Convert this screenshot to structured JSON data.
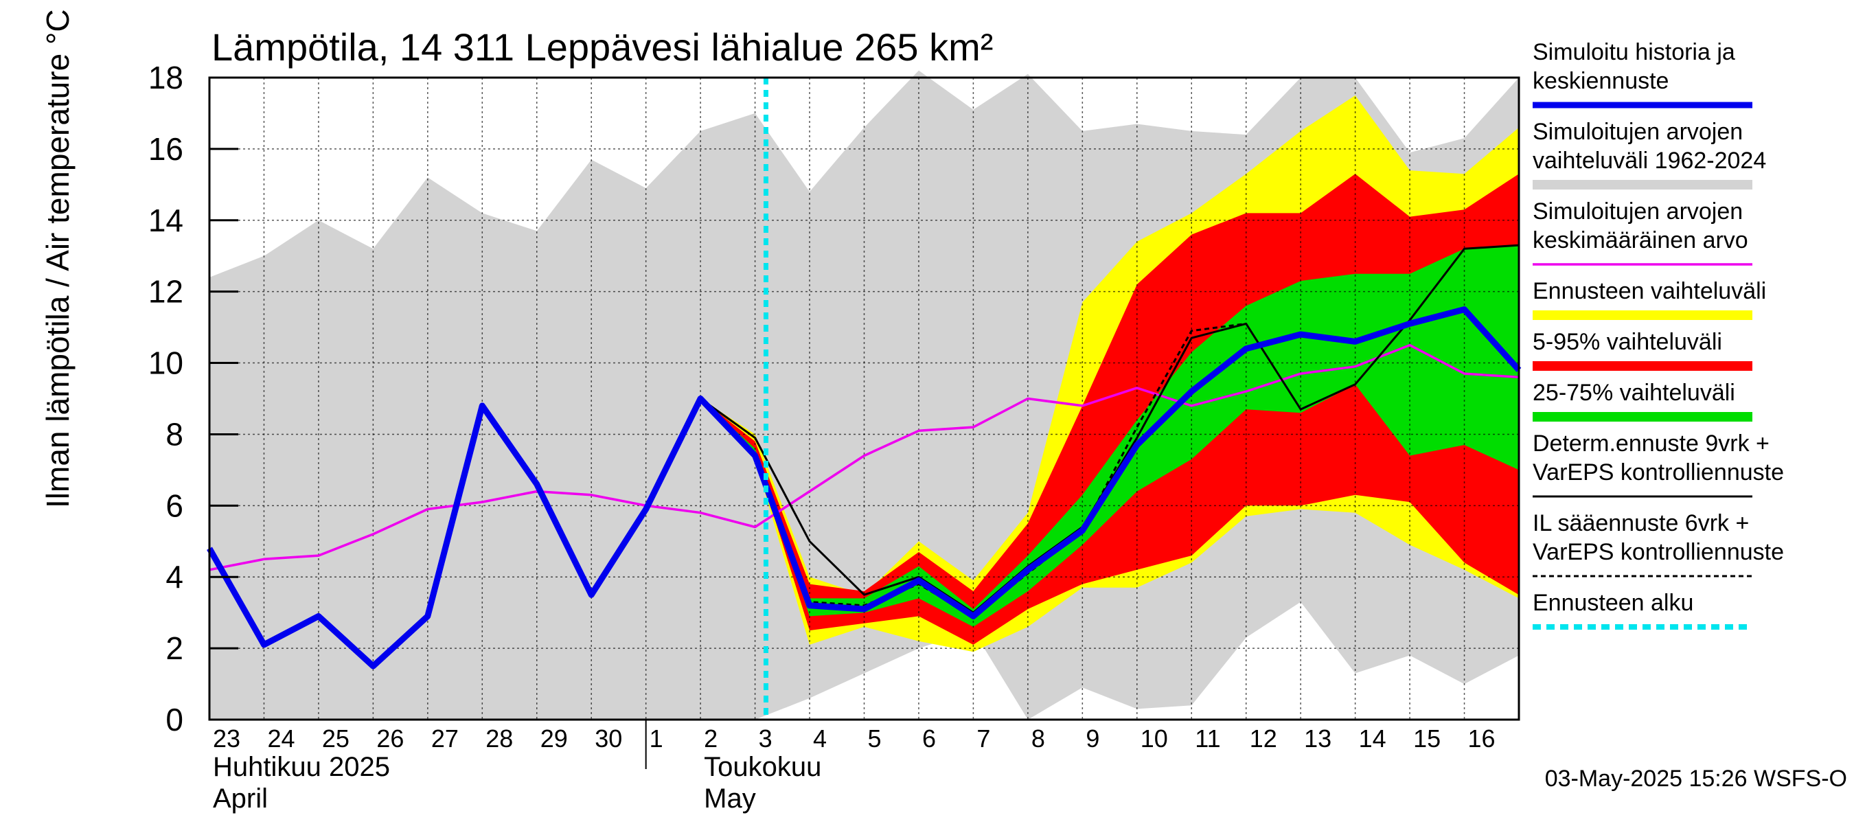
{
  "chart_data": {
    "type": "area",
    "title": "Lämpötila, 14 311 Leppävesi lähialue 265 km²",
    "ylabel": "Ilman lämpötila / Air temperature   °C",
    "ylim": [
      0,
      18
    ],
    "yticks": [
      0,
      2,
      4,
      6,
      8,
      10,
      12,
      14,
      16,
      18
    ],
    "grid": true,
    "legend_position": "right",
    "x_day_ticks": [
      "23",
      "24",
      "25",
      "26",
      "27",
      "28",
      "29",
      "30",
      "1",
      "2",
      "3",
      "4",
      "5",
      "6",
      "7",
      "8",
      "9",
      "10",
      "11",
      "12",
      "13",
      "14",
      "15",
      "16"
    ],
    "months": [
      {
        "fi": "Huhtikuu  2025",
        "en": "April"
      },
      {
        "fi": "Toukokuu",
        "en": "May"
      }
    ],
    "forecast_start": "2025-05-03",
    "footer": "03-May-2025 15:26 WSFS-O",
    "colors": {
      "history_range": "#d3d3d3",
      "forecast_range": "#ffff00",
      "p5_95": "#ff0000",
      "p25_75": "#00dd00",
      "simulated": "#0000ee",
      "mean": "#ee00ee",
      "determ": "#000000",
      "forecast_start": "#00e5ee"
    },
    "legend": [
      {
        "key": "simulated",
        "lines": [
          "Simuloitu historia ja",
          "keskiennuste"
        ],
        "style": "thick"
      },
      {
        "key": "history_range",
        "lines": [
          "Simuloitujen arvojen",
          "vaihteluväli 1962-2024"
        ],
        "style": "band"
      },
      {
        "key": "mean",
        "lines": [
          "Simuloitujen arvojen",
          "keskimääräinen arvo"
        ],
        "style": "line"
      },
      {
        "key": "forecast_range",
        "lines": [
          "Ennusteen vaihteluväli"
        ],
        "style": "band"
      },
      {
        "key": "p5_95",
        "lines": [
          "5-95% vaihteluväli"
        ],
        "style": "band"
      },
      {
        "key": "p25_75",
        "lines": [
          "25-75% vaihteluväli"
        ],
        "style": "band"
      },
      {
        "key": "determ",
        "lines": [
          "Determ.ennuste 9vrk +",
          "VarEPS kontrolliennuste"
        ],
        "style": "thin"
      },
      {
        "key": "il",
        "lines": [
          "IL sääennuste 6vrk  +",
          "  VarEPS kontrolliennuste"
        ],
        "style": "dashed"
      },
      {
        "key": "forecast_start",
        "lines": [
          "Ennusteen alku"
        ],
        "style": "dotted"
      }
    ],
    "series": {
      "history_max": {
        "x": [
          -0.5,
          0.5,
          1.5,
          2.5,
          3.5,
          4.5,
          5.5,
          6.5,
          7.5,
          8.5,
          9.5,
          10.5,
          11.5,
          12.5,
          13.5,
          14.5,
          15.5,
          16.5,
          17.5,
          18.5,
          19.5,
          20.5,
          21.5,
          22.5,
          23.5
        ],
        "y": [
          12.4,
          13.0,
          14.0,
          13.2,
          15.2,
          14.2,
          13.7,
          15.7,
          14.9,
          16.5,
          17.0,
          14.8,
          16.6,
          18.2,
          17.1,
          18.1,
          16.5,
          16.7,
          16.5,
          16.4,
          18.0,
          18.0,
          15.9,
          16.3,
          18.0
        ]
      },
      "history_min": {
        "x": [
          -0.5,
          0.5,
          1.5,
          2.5,
          3.5,
          4.5,
          5.5,
          6.5,
          7.5,
          8.5,
          9.5,
          10.5,
          11.5,
          12.5,
          13.5,
          14.5,
          15.5,
          16.5,
          17.5,
          18.5,
          19.5,
          20.5,
          21.5,
          22.5,
          23.5
        ],
        "y": [
          0,
          0,
          0,
          0,
          0,
          0,
          0,
          0,
          0,
          0,
          0,
          0.6,
          1.3,
          2.0,
          2.5,
          0.0,
          0.9,
          0.3,
          0.4,
          2.3,
          3.3,
          1.3,
          1.8,
          1.0,
          1.8
        ]
      },
      "forecast_max": {
        "x": [
          8.5,
          9.5,
          10.5,
          11.5,
          12.5,
          13.5,
          14.5,
          15.5,
          16.5,
          17.5,
          18.5,
          19.5,
          20.5,
          21.5,
          22.5,
          23.5
        ],
        "y": [
          9.0,
          8.0,
          4.0,
          3.5,
          5.0,
          3.9,
          5.8,
          11.7,
          13.4,
          14.2,
          15.3,
          16.5,
          17.5,
          15.4,
          15.3,
          16.6
        ]
      },
      "forecast_min": {
        "x": [
          8.5,
          9.5,
          10.5,
          11.5,
          12.5,
          13.5,
          14.5,
          15.5,
          16.5,
          17.5,
          18.5,
          19.5,
          20.5,
          21.5,
          22.5,
          23.5
        ],
        "y": [
          9.0,
          7.3,
          2.1,
          2.6,
          2.2,
          1.9,
          2.6,
          3.7,
          3.7,
          4.4,
          5.7,
          5.9,
          5.8,
          4.9,
          4.2,
          3.4
        ]
      },
      "p95": {
        "x": [
          8.5,
          9.5,
          10.5,
          11.5,
          12.5,
          13.5,
          14.5,
          15.5,
          16.5,
          17.5,
          18.5,
          19.5,
          20.5,
          21.5,
          22.5,
          23.5
        ],
        "y": [
          9.0,
          7.8,
          3.8,
          3.6,
          4.7,
          3.6,
          5.5,
          8.8,
          12.2,
          13.6,
          14.2,
          14.2,
          15.3,
          14.1,
          14.3,
          15.3
        ]
      },
      "p5": {
        "x": [
          8.5,
          9.5,
          10.5,
          11.5,
          12.5,
          13.5,
          14.5,
          15.5,
          16.5,
          17.5,
          18.5,
          19.5,
          20.5,
          21.5,
          22.5,
          23.5
        ],
        "y": [
          9.0,
          7.4,
          2.5,
          2.7,
          2.9,
          2.1,
          3.1,
          3.8,
          4.2,
          4.6,
          6.0,
          6.0,
          6.3,
          6.1,
          4.4,
          3.5
        ]
      },
      "p75": {
        "x": [
          8.5,
          9.5,
          10.5,
          11.5,
          12.5,
          13.5,
          14.5,
          15.5,
          16.5,
          17.5,
          18.5,
          19.5,
          20.5,
          21.5,
          22.5,
          23.5
        ],
        "y": [
          9.0,
          7.6,
          3.4,
          3.4,
          4.3,
          3.1,
          4.6,
          6.3,
          8.4,
          10.3,
          11.6,
          12.3,
          12.5,
          12.5,
          13.2,
          13.3
        ]
      },
      "p25": {
        "x": [
          8.5,
          9.5,
          10.5,
          11.5,
          12.5,
          13.5,
          14.5,
          15.5,
          16.5,
          17.5,
          18.5,
          19.5,
          20.5,
          21.5,
          22.5,
          23.5
        ],
        "y": [
          9.0,
          7.5,
          2.9,
          3.0,
          3.4,
          2.6,
          3.6,
          4.9,
          6.4,
          7.3,
          8.7,
          8.6,
          9.4,
          7.4,
          7.7,
          7.0
        ]
      },
      "simulated": {
        "x": [
          -0.5,
          0.5,
          1.5,
          2.5,
          3.5,
          4.5,
          5.5,
          6.5,
          7.5,
          8.5,
          9.5,
          10.5,
          11.5,
          12.5,
          13.5,
          14.5,
          15.5,
          16.5,
          17.5,
          18.5,
          19.5,
          20.5,
          21.5,
          22.5,
          23.5
        ],
        "y": [
          4.8,
          2.1,
          2.9,
          1.5,
          2.9,
          8.8,
          6.6,
          3.5,
          5.9,
          9.0,
          7.4,
          3.2,
          3.1,
          3.9,
          2.9,
          4.2,
          5.3,
          7.7,
          9.2,
          10.4,
          10.8,
          10.6,
          11.1,
          11.5,
          9.8
        ]
      },
      "mean": {
        "x": [
          -0.5,
          0.5,
          1.5,
          2.5,
          3.5,
          4.5,
          5.5,
          6.5,
          7.5,
          8.5,
          9.5,
          10.5,
          11.5,
          12.5,
          13.5,
          14.5,
          15.5,
          16.5,
          17.5,
          18.5,
          19.5,
          20.5,
          21.5,
          22.5,
          23.5
        ],
        "y": [
          4.2,
          4.5,
          4.6,
          5.2,
          5.9,
          6.1,
          6.4,
          6.3,
          6.0,
          5.8,
          5.4,
          6.4,
          7.4,
          8.1,
          8.2,
          9.0,
          8.8,
          9.3,
          8.8,
          9.2,
          9.7,
          9.9,
          10.5,
          9.7,
          9.6
        ]
      },
      "determ": {
        "x": [
          8.5,
          9.5,
          10.5,
          11.5,
          12.5,
          13.5,
          14.5,
          15.5,
          16.5,
          17.5,
          18.5,
          19.5,
          20.5,
          21.5,
          22.5,
          23.5
        ],
        "y": [
          9.0,
          7.9,
          5.0,
          3.5,
          4.0,
          3.0,
          4.3,
          5.4,
          7.9,
          10.7,
          11.1,
          8.7,
          9.4,
          11.2,
          13.2,
          13.3
        ]
      },
      "il": {
        "x": [
          8.5,
          9.5,
          10.5,
          11.5,
          12.5,
          13.5,
          14.5,
          15.5,
          16.5,
          17.5,
          18.5
        ],
        "y": [
          9.0,
          7.4,
          3.3,
          3.2,
          3.8,
          2.9,
          4.1,
          5.3,
          8.2,
          10.9,
          11.1
        ]
      }
    }
  }
}
